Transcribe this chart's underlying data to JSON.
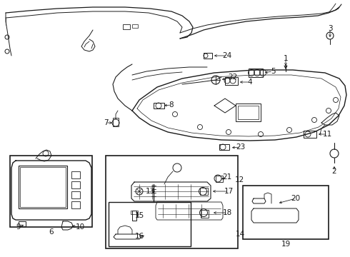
{
  "bg_color": "#ffffff",
  "line_color": "#1a1a1a",
  "text_color": "#1a1a1a",
  "fig_width": 4.9,
  "fig_height": 3.6,
  "dpi": 100
}
